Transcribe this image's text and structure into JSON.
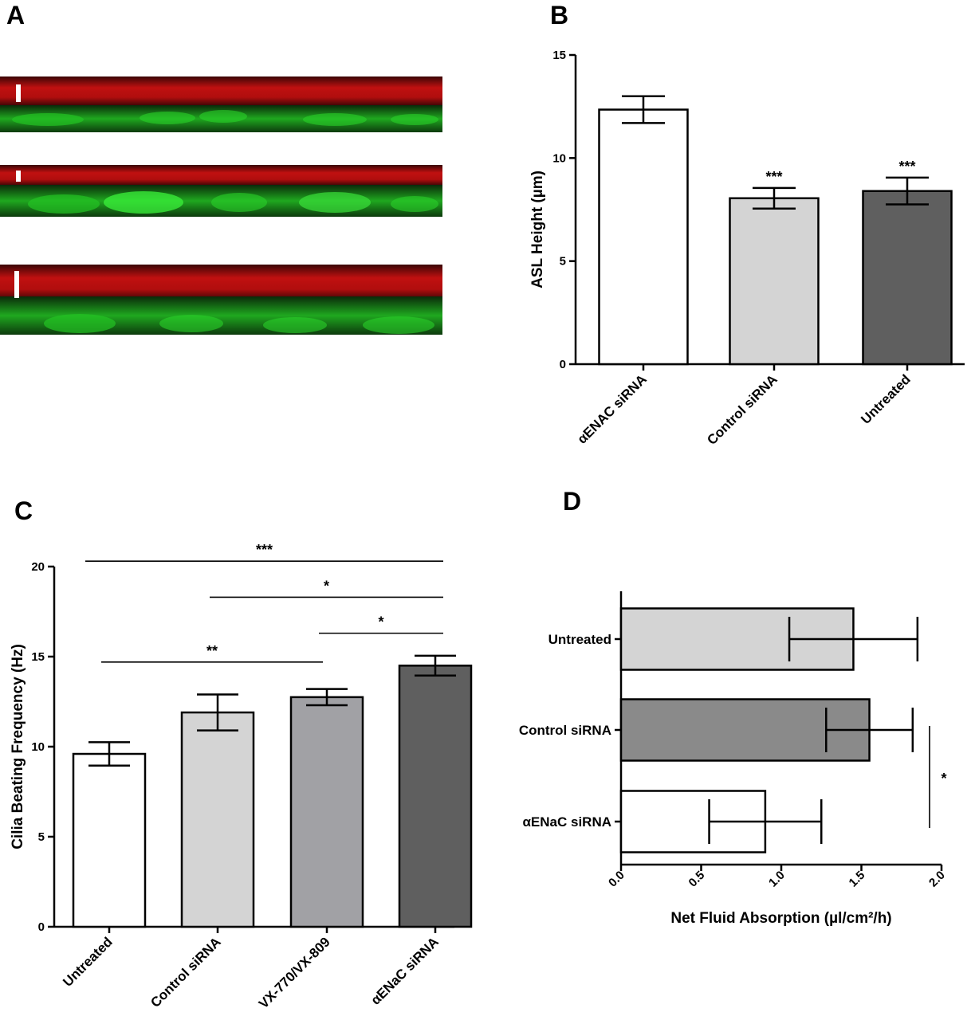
{
  "panel_letters": {
    "a": "A",
    "b": "B",
    "c": "C",
    "d": "D"
  },
  "micrographs": [
    {
      "name": "micrograph-1",
      "surface_color": "#c01010",
      "cell_color": "#1fbf1f"
    },
    {
      "name": "micrograph-2",
      "surface_color": "#c01010",
      "cell_color": "#1fbf1f"
    },
    {
      "name": "micrograph-3",
      "surface_color": "#c01010",
      "cell_color": "#1fbf1f"
    }
  ],
  "chart_data": [
    {
      "panel": "B",
      "type": "bar",
      "orientation": "vertical",
      "ylabel": "ASL Height (µm)",
      "ylim": [
        0,
        15
      ],
      "yticks": [
        0,
        5,
        10,
        15
      ],
      "categories": [
        "αENAC siRNA",
        "Control siRNA",
        "Untreated"
      ],
      "values": [
        12.35,
        8.05,
        8.4
      ],
      "errors": [
        0.65,
        0.5,
        0.65
      ],
      "colors": [
        "#ffffff",
        "#d4d4d4",
        "#5f5f5f"
      ],
      "significance": [
        "",
        "***",
        "***"
      ],
      "grid": false
    },
    {
      "panel": "C",
      "type": "bar",
      "orientation": "vertical",
      "ylabel": "Cilia Beating Frequency (Hz)",
      "ylim": [
        0,
        20
      ],
      "yticks": [
        0,
        5,
        10,
        15,
        20
      ],
      "categories": [
        "Untreated",
        "Control siRNA",
        "VX-770/VX-809",
        "αENaC siRNA"
      ],
      "values": [
        9.6,
        11.9,
        12.75,
        14.5
      ],
      "errors": [
        0.65,
        1.0,
        0.45,
        0.55
      ],
      "colors": [
        "#ffffff",
        "#d4d4d4",
        "#a1a1a5",
        "#5f5f5f"
      ],
      "comparisons": [
        {
          "from": 0,
          "to": 3,
          "label": "***",
          "y": 20.3
        },
        {
          "from": 1,
          "to": 3,
          "label": "*",
          "y": 18.3
        },
        {
          "from": 2,
          "to": 3,
          "label": "*",
          "y": 16.3
        },
        {
          "from": 0,
          "to": 2,
          "label": "**",
          "y": 14.7
        }
      ],
      "grid": false
    },
    {
      "panel": "D",
      "type": "bar",
      "orientation": "horizontal",
      "xlabel": "Net Fluid Absorption (µl/cm²/h)",
      "xlim": [
        0,
        2.0
      ],
      "xticks": [
        "0.0",
        "0.5",
        "1.0",
        "1.5",
        "2.0"
      ],
      "categories": [
        "Untreated",
        "Control siRNA",
        "αENaC siRNA"
      ],
      "values": [
        1.45,
        1.55,
        0.9
      ],
      "errors": [
        0.4,
        0.27,
        0.35
      ],
      "colors": [
        "#d4d4d4",
        "#8a8a8a",
        "#ffffff"
      ],
      "comparisons": [
        {
          "from": 1,
          "to": 2,
          "label": "*"
        }
      ],
      "grid": false
    }
  ]
}
